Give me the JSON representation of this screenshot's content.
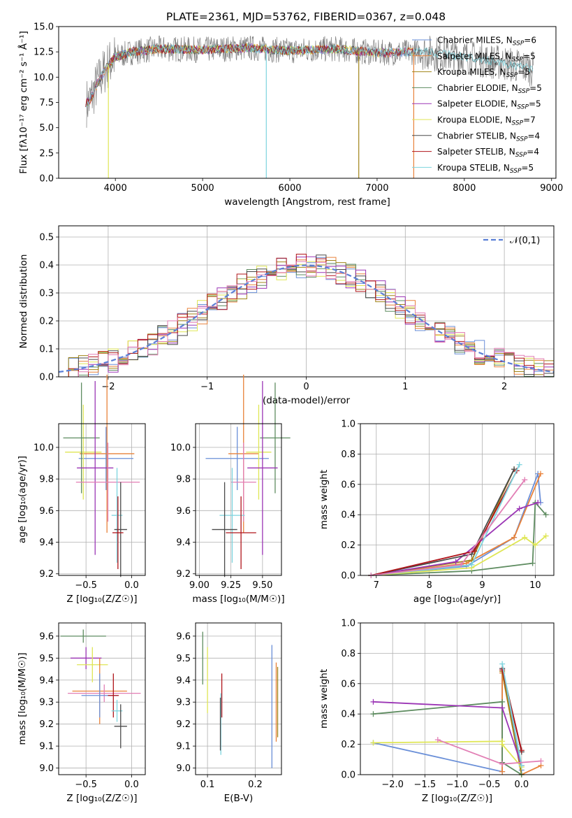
{
  "figure": {
    "title": "PLATE=2361, MJD=53762, FIBERID=0367, z=0.048"
  },
  "models": [
    {
      "name": "Chabrier MILES",
      "nssp": "6",
      "color": "#6a8fd8"
    },
    {
      "name": "Salpeter MILES",
      "nssp": "5",
      "color": "#e8823a"
    },
    {
      "name": "Kroupa MILES",
      "nssp": "5",
      "color": "#a08418"
    },
    {
      "name": "Chabrier ELODIE",
      "nssp": "5",
      "color": "#5e8c60"
    },
    {
      "name": "Salpeter ELODIE",
      "nssp": "5",
      "color": "#9b35b5"
    },
    {
      "name": "Kroupa ELODIE",
      "nssp": "7",
      "color": "#dfe655"
    },
    {
      "name": "Chabrier STELIB",
      "nssp": "4",
      "color": "#4a4a4a"
    },
    {
      "name": "Salpeter STELIB",
      "nssp": "4",
      "color": "#b0141a"
    },
    {
      "name": "Kroupa STELIB",
      "nssp": "5",
      "color": "#7dd4de"
    }
  ],
  "extra_colors": {
    "pink": "#e27fb5",
    "data": "#7f7f7f"
  },
  "chart_data": [
    {
      "id": "spectrum",
      "type": "line",
      "title": "PLATE=2361, MJD=53762, FIBERID=0367, z=0.048",
      "xlabel": "wavelength [Angstrom, rest frame]",
      "ylabel": "Flux [fλ10⁻¹⁷ erg cm⁻² s⁻¹ Å⁻¹]",
      "xlim": [
        3350,
        9050
      ],
      "ylim": [
        0,
        15
      ],
      "xticks": [
        4000,
        5000,
        6000,
        7000,
        8000,
        9000
      ],
      "yticks": [
        0.0,
        2.5,
        5.0,
        7.5,
        10.0,
        12.5,
        15.0
      ],
      "ytick_labels": [
        "0.0",
        "2.5",
        "5.0",
        "7.5",
        "10.0",
        "12.5",
        "15.0"
      ],
      "legend_placement": "right",
      "continuum": {
        "x": [
          3700,
          3800,
          3900,
          4000,
          4200,
          4500,
          5000,
          5500,
          6000,
          6500,
          7000,
          7500,
          8000,
          8500,
          8800
        ],
        "y": [
          7.5,
          9.5,
          11.0,
          12.0,
          12.5,
          12.8,
          12.7,
          12.9,
          12.6,
          12.8,
          12.4,
          12.5,
          12.0,
          11.3,
          10.8
        ]
      },
      "model_extents": [
        [
          3660,
          7420
        ],
        [
          3660,
          7420
        ],
        [
          3660,
          6800
        ],
        [
          3900,
          6800
        ],
        [
          3660,
          7420
        ],
        [
          3900,
          7420
        ],
        [
          3660,
          8790
        ],
        [
          3660,
          7420
        ],
        [
          3660,
          8790
        ]
      ],
      "dips": [
        {
          "x": 3920,
          "model": 5
        },
        {
          "x": 5730,
          "model": 8
        },
        {
          "x": 6790,
          "model": 2
        },
        {
          "x": 7420,
          "model": 1
        }
      ]
    },
    {
      "id": "residuals",
      "type": "bar",
      "xlabel": "(data-model)/error",
      "ylabel": "Normed distribution",
      "xlim": [
        -2.5,
        2.5
      ],
      "ylim": [
        0,
        0.54
      ],
      "xticks": [
        -2,
        -1,
        0,
        1,
        2
      ],
      "xtick_labels": [
        "−2",
        "−1",
        "0",
        "1",
        "2"
      ],
      "yticks": [
        0.0,
        0.1,
        0.2,
        0.3,
        0.4,
        0.5
      ],
      "ytick_labels": [
        "0.0",
        "0.1",
        "0.2",
        "0.3",
        "0.4",
        "0.5"
      ],
      "bin_width": 0.1,
      "legend": "𝒩(0,1)",
      "legend_placement": "top-right",
      "series_seeds": [
        1,
        2,
        3,
        4,
        5,
        6,
        7,
        8,
        9
      ]
    },
    {
      "id": "z-age",
      "type": "scatter",
      "xlabel": "Z [log₁₀(Z/Z☉)]",
      "ylabel": "age  [log₁₀(age/yr)]",
      "xlim": [
        -0.8,
        0.15
      ],
      "ylim": [
        9.19,
        10.15
      ],
      "xticks": [
        -0.5,
        0.0
      ],
      "xtick_labels": [
        "−0.5",
        "0.0"
      ],
      "yticks": [
        9.2,
        9.4,
        9.6,
        9.8,
        10.0
      ],
      "ytick_labels": [
        "9.2",
        "9.4",
        "9.6",
        "9.8",
        "10.0"
      ],
      "points": [
        {
          "x": -0.28,
          "y": 9.93,
          "xerr": 0.3,
          "yerr": 0.2,
          "model": 0
        },
        {
          "x": -0.27,
          "y": 9.96,
          "xerr": 0.3,
          "yerr": 0.5,
          "model": 1
        },
        {
          "x": -0.53,
          "y": 9.97,
          "xerr": 0.2,
          "yerr": 0.3,
          "model": 5
        },
        {
          "x": -0.55,
          "y": 10.06,
          "xerr": 0.2,
          "yerr": 0.35,
          "model": 3
        },
        {
          "x": -0.4,
          "y": 9.87,
          "xerr": 0.2,
          "yerr": 0.55,
          "model": 4
        },
        {
          "x": -0.26,
          "y": 9.78,
          "xerr": 0.35,
          "yerr": 0.25,
          "extra": "pink"
        },
        {
          "x": -0.16,
          "y": 9.57,
          "xerr": 0.06,
          "yerr": 0.3,
          "model": 8
        },
        {
          "x": -0.12,
          "y": 9.48,
          "xerr": 0.07,
          "yerr": 0.3,
          "model": 6
        },
        {
          "x": -0.15,
          "y": 9.46,
          "xerr": 0.06,
          "yerr": 0.23,
          "model": 7
        }
      ]
    },
    {
      "id": "mass-age",
      "type": "scatter",
      "xlabel": "mass [log₁₀(M/M☉)]",
      "ylabel": "",
      "xlim": [
        8.97,
        9.65
      ],
      "ylim": [
        9.19,
        10.15
      ],
      "xticks": [
        9.0,
        9.25,
        9.5
      ],
      "xtick_labels": [
        "9.00",
        "9.25",
        "9.50"
      ],
      "yticks": [
        9.2,
        9.4,
        9.6,
        9.8,
        10.0
      ],
      "ytick_labels": [
        "9.2",
        "9.4",
        "9.6",
        "9.8",
        "10.0"
      ],
      "points": [
        {
          "x": 9.3,
          "y": 9.93,
          "xerr": 0.25,
          "yerr": 0.2,
          "model": 0
        },
        {
          "x": 9.35,
          "y": 9.96,
          "xerr": 0.12,
          "yerr": 0.5,
          "model": 1
        },
        {
          "x": 9.47,
          "y": 9.97,
          "xerr": 0.1,
          "yerr": 0.3,
          "model": 5
        },
        {
          "x": 9.6,
          "y": 10.06,
          "xerr": 0.12,
          "yerr": 0.35,
          "model": 3
        },
        {
          "x": 9.5,
          "y": 9.87,
          "xerr": 0.12,
          "yerr": 0.55,
          "model": 4
        },
        {
          "x": 9.35,
          "y": 9.78,
          "xerr": 0.1,
          "yerr": 0.25,
          "extra": "pink"
        },
        {
          "x": 9.26,
          "y": 9.57,
          "xerr": 0.1,
          "yerr": 0.3,
          "model": 8
        },
        {
          "x": 9.2,
          "y": 9.48,
          "xerr": 0.1,
          "yerr": 0.3,
          "model": 6
        },
        {
          "x": 9.33,
          "y": 9.46,
          "xerr": 0.12,
          "yerr": 0.23,
          "model": 7
        }
      ]
    },
    {
      "id": "age-weight",
      "type": "line",
      "xlabel": "age  [log₁₀(age/yr)]",
      "ylabel": "mass weight",
      "xlim": [
        6.7,
        10.35
      ],
      "ylim": [
        0,
        1.0
      ],
      "xticks": [
        7,
        8,
        9,
        10
      ],
      "xtick_labels": [
        "7",
        "8",
        "9",
        "10"
      ],
      "yticks": [
        0.0,
        0.2,
        0.4,
        0.6,
        0.8,
        1.0
      ],
      "ytick_labels": [
        "0.0",
        "0.2",
        "0.4",
        "0.6",
        "0.8",
        "1.0"
      ],
      "series": [
        {
          "model": 0,
          "x": [
            6.9,
            8.7,
            9.6,
            10.05,
            10.1
          ],
          "y": [
            0.0,
            0.06,
            0.25,
            0.67,
            0.48
          ]
        },
        {
          "model": 1,
          "x": [
            6.9,
            8.7,
            9.6,
            10.1
          ],
          "y": [
            0.0,
            0.08,
            0.25,
            0.67
          ]
        },
        {
          "model": 2,
          "x": [
            6.9,
            8.8,
            9.6
          ],
          "y": [
            0.0,
            0.1,
            0.7
          ]
        },
        {
          "model": 3,
          "x": [
            6.9,
            8.8,
            9.95,
            10.0,
            10.2
          ],
          "y": [
            0.0,
            0.03,
            0.08,
            0.48,
            0.4
          ]
        },
        {
          "model": 4,
          "x": [
            6.9,
            8.5,
            9.7,
            10.05
          ],
          "y": [
            0.0,
            0.09,
            0.44,
            0.48
          ]
        },
        {
          "model": 5,
          "x": [
            6.9,
            8.8,
            9.8,
            10.0,
            10.2
          ],
          "y": [
            0.0,
            0.05,
            0.25,
            0.2,
            0.26
          ]
        },
        {
          "model": 6,
          "x": [
            6.9,
            8.8,
            9.6
          ],
          "y": [
            0.0,
            0.14,
            0.7
          ]
        },
        {
          "model": 7,
          "x": [
            6.9,
            8.85,
            9.65
          ],
          "y": [
            0.0,
            0.16,
            0.69
          ]
        },
        {
          "model": 8,
          "x": [
            6.9,
            8.8,
            9.7
          ],
          "y": [
            0.0,
            0.07,
            0.73
          ]
        },
        {
          "extra": "pink",
          "x": [
            6.9,
            8.6,
            9.8
          ],
          "y": [
            0.0,
            0.07,
            0.63
          ]
        }
      ]
    },
    {
      "id": "z-mass",
      "type": "scatter",
      "xlabel": "Z [log₁₀(Z/Z☉)]",
      "ylabel": "mass [log₁₀(M/M☉)]",
      "xlim": [
        -0.8,
        0.15
      ],
      "ylim": [
        8.97,
        9.66
      ],
      "xticks": [
        -0.5,
        0.0
      ],
      "xtick_labels": [
        "−0.5",
        "0.0"
      ],
      "yticks": [
        9.0,
        9.1,
        9.2,
        9.3,
        9.4,
        9.5,
        9.6
      ],
      "ytick_labels": [
        "9.0",
        "9.1",
        "9.2",
        "9.3",
        "9.4",
        "9.5",
        "9.6"
      ],
      "points": [
        {
          "x": -0.53,
          "y": 9.6,
          "xerr": 0.25,
          "yerr": 0.03,
          "model": 3
        },
        {
          "x": -0.5,
          "y": 9.5,
          "xerr": 0.17,
          "yerr": 0.05,
          "model": 4
        },
        {
          "x": -0.43,
          "y": 9.47,
          "xerr": 0.17,
          "yerr": 0.08,
          "model": 5
        },
        {
          "x": -0.35,
          "y": 9.35,
          "xerr": 0.3,
          "yerr": 0.15,
          "model": 1
        },
        {
          "x": -0.3,
          "y": 9.34,
          "xerr": 0.4,
          "yerr": 0.04,
          "extra": "pink"
        },
        {
          "x": -0.35,
          "y": 9.33,
          "xerr": 0.2,
          "yerr": 0.1,
          "model": 0
        },
        {
          "x": -0.2,
          "y": 9.33,
          "xerr": 0.06,
          "yerr": 0.1,
          "model": 7
        },
        {
          "x": -0.16,
          "y": 9.26,
          "xerr": 0.06,
          "yerr": 0.05,
          "model": 8
        },
        {
          "x": -0.12,
          "y": 9.19,
          "xerr": 0.07,
          "yerr": 0.1,
          "model": 6
        }
      ]
    },
    {
      "id": "ebv-mass",
      "type": "scatter",
      "xlabel": "E(B-V)",
      "ylabel": "",
      "xlim": [
        0.075,
        0.255
      ],
      "ylim": [
        8.97,
        9.66
      ],
      "xticks": [
        0.1,
        0.2
      ],
      "xtick_labels": [
        "0.1",
        "0.2"
      ],
      "yticks": [
        9.0,
        9.1,
        9.2,
        9.3,
        9.4,
        9.5,
        9.6
      ],
      "ytick_labels": [
        "9.0",
        "9.1",
        "9.2",
        "9.3",
        "9.4",
        "9.5",
        "9.6"
      ],
      "points": [
        {
          "x": 0.09,
          "y": 9.5,
          "xerr": 0,
          "yerr": 0.12,
          "model": 3
        },
        {
          "x": 0.1,
          "y": 9.4,
          "xerr": 0,
          "yerr": 0.15,
          "model": 5
        },
        {
          "x": 0.13,
          "y": 9.33,
          "xerr": 0,
          "yerr": 0.1,
          "model": 7
        },
        {
          "x": 0.128,
          "y": 9.2,
          "xerr": 0,
          "yerr": 0.14,
          "model": 8
        },
        {
          "x": 0.127,
          "y": 9.2,
          "xerr": 0,
          "yerr": 0.12,
          "model": 6
        },
        {
          "x": 0.235,
          "y": 9.28,
          "xerr": 0,
          "yerr": 0.28,
          "model": 0
        },
        {
          "x": 0.244,
          "y": 9.3,
          "xerr": 0,
          "yerr": 0.18,
          "model": 1
        },
        {
          "x": 0.247,
          "y": 9.3,
          "xerr": 0,
          "yerr": 0.16,
          "model": 2
        }
      ]
    },
    {
      "id": "z-weight",
      "type": "line",
      "xlabel": "Z [log₁₀(Z/Z☉)]",
      "ylabel": "mass weight",
      "xlim": [
        -2.5,
        0.5
      ],
      "ylim": [
        0,
        1.0
      ],
      "xticks": [
        -2.0,
        -1.5,
        -1.0,
        -0.5,
        0.0
      ],
      "xtick_labels": [
        "−2.0",
        "−1.5",
        "−1.0",
        "−0.5",
        "0.0"
      ],
      "yticks": [
        0.0,
        0.2,
        0.4,
        0.6,
        0.8,
        1.0
      ],
      "ytick_labels": [
        "0.0",
        "0.2",
        "0.4",
        "0.6",
        "0.8",
        "1.0"
      ],
      "series": [
        {
          "model": 0,
          "x": [
            -2.3,
            -0.3,
            -0.3,
            0.0
          ],
          "y": [
            0.21,
            0.02,
            0.7,
            0.03
          ]
        },
        {
          "model": 1,
          "x": [
            -0.3,
            -0.3,
            0.0,
            0.3
          ],
          "y": [
            0.02,
            0.67,
            0.0,
            0.06
          ]
        },
        {
          "model": 2,
          "x": [
            -0.3,
            0.0
          ],
          "y": [
            0.68,
            0.0
          ]
        },
        {
          "model": 3,
          "x": [
            -2.3,
            -0.3,
            -0.3,
            0.0
          ],
          "y": [
            0.4,
            0.48,
            0.08,
            0.0
          ]
        },
        {
          "model": 4,
          "x": [
            -2.3,
            -0.3,
            0.0
          ],
          "y": [
            0.48,
            0.44,
            0.06
          ]
        },
        {
          "model": 5,
          "x": [
            -2.3,
            -0.3,
            -0.3,
            0.0
          ],
          "y": [
            0.21,
            0.22,
            0.2,
            0.05
          ]
        },
        {
          "model": 6,
          "x": [
            -0.3,
            0.0
          ],
          "y": [
            0.7,
            0.15
          ]
        },
        {
          "model": 7,
          "x": [
            -0.3,
            0.0
          ],
          "y": [
            0.69,
            0.16
          ]
        },
        {
          "model": 8,
          "x": [
            -0.3,
            0.0
          ],
          "y": [
            0.73,
            0.06
          ]
        },
        {
          "extra": "pink",
          "x": [
            -1.3,
            -0.3,
            0.3
          ],
          "y": [
            0.23,
            0.07,
            0.09
          ]
        }
      ]
    }
  ]
}
